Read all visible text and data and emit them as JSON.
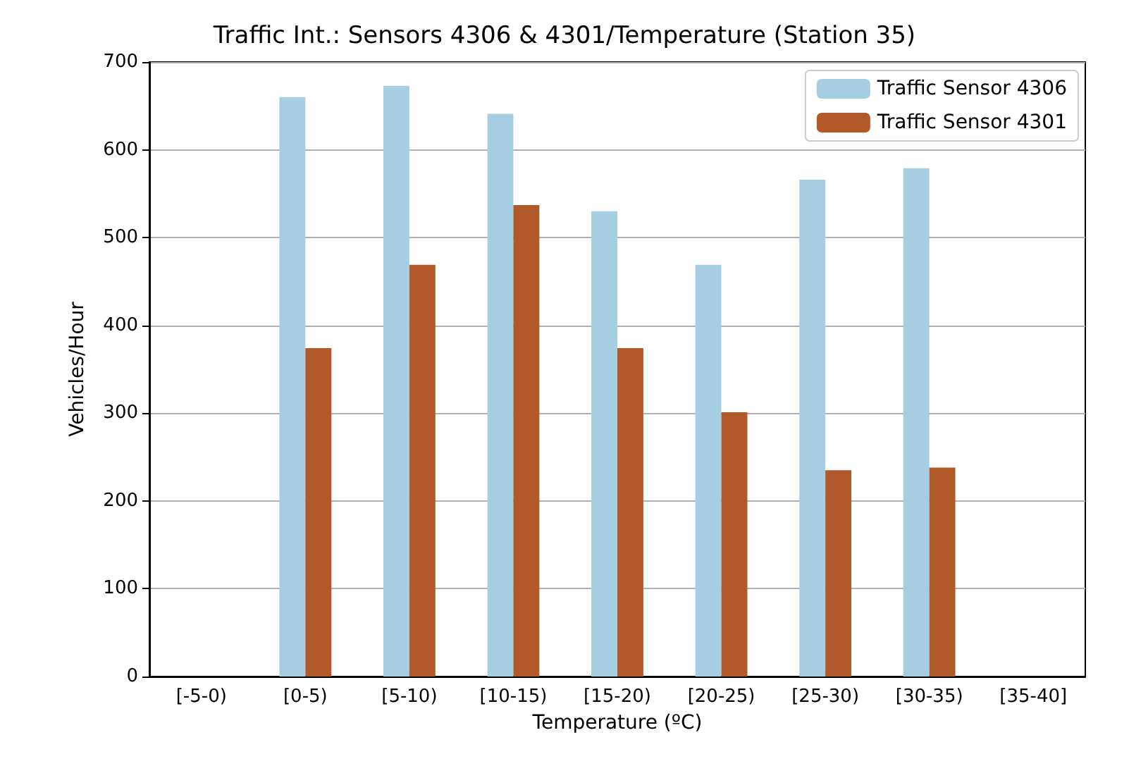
{
  "chart_data": {
    "type": "bar",
    "title": "Traffic Int.: Sensors 4306 & 4301/Temperature (Station 35)",
    "xlabel": "Temperature (ºC)",
    "ylabel": "Vehicles/Hour",
    "categories": [
      "[-5-0)",
      "[0-5)",
      "[5-10)",
      "[10-15)",
      "[15-20)",
      "[20-25)",
      "[25-30)",
      "[30-35)",
      "[35-40]"
    ],
    "series": [
      {
        "name": "Traffic Sensor 4306",
        "color": "#a6cee3",
        "values": [
          null,
          660,
          673,
          641,
          530,
          469,
          566,
          579,
          null
        ]
      },
      {
        "name": "Traffic Sensor 4301",
        "color": "#b15928",
        "values": [
          null,
          374,
          469,
          537,
          374,
          301,
          235,
          238,
          null
        ]
      }
    ],
    "ylim": [
      0,
      700
    ],
    "yticks": [
      0,
      100,
      200,
      300,
      400,
      500,
      600,
      700
    ],
    "grid": "y",
    "legend": "top right"
  }
}
